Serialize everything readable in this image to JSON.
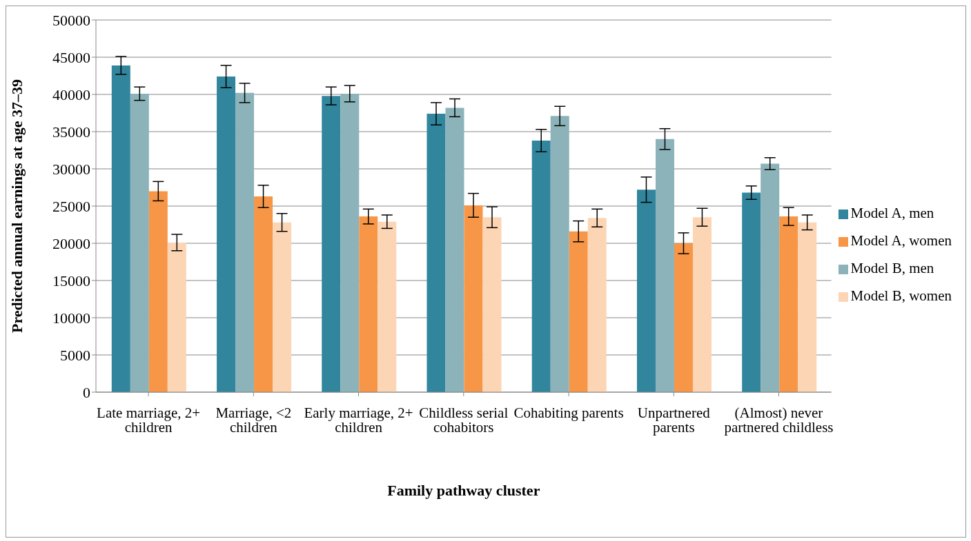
{
  "chart_data": {
    "type": "bar",
    "xlabel": "Family pathway cluster",
    "ylabel": "Predicted annual earnings at age 37–39",
    "categories": [
      "Late marriage, 2+ children",
      "Marriage, <2 children",
      "Early marriage, 2+ children",
      "Childless serial cohabitors",
      "Cohabiting parents",
      "Unpartnered parents",
      "(Almost) never partnered childless"
    ],
    "series": [
      {
        "name": "Model A, men",
        "color": "#31859c",
        "values": [
          43900,
          42400,
          39800,
          37400,
          33800,
          27200,
          26800
        ],
        "errors": [
          1200,
          1500,
          1200,
          1500,
          1500,
          1700,
          900
        ]
      },
      {
        "name": "Model B, men",
        "color": "#8cb3b9",
        "values": [
          40100,
          40200,
          40100,
          38200,
          37100,
          34000,
          30700
        ],
        "errors": [
          900,
          1300,
          1100,
          1200,
          1300,
          1400,
          800
        ]
      },
      {
        "name": "Model A, women",
        "color": "#f79646",
        "values": [
          27000,
          26300,
          23600,
          25100,
          21600,
          20000,
          23600
        ],
        "errors": [
          1300,
          1500,
          1000,
          1600,
          1400,
          1400,
          1200
        ]
      },
      {
        "name": "Model B, women",
        "color": "#fcd5b5",
        "values": [
          20100,
          22800,
          22900,
          23500,
          23400,
          23500,
          22800
        ],
        "errors": [
          1100,
          1200,
          900,
          1400,
          1200,
          1200,
          1000
        ]
      }
    ],
    "ylim": [
      0,
      50000
    ],
    "yticks": [
      0,
      5000,
      10000,
      15000,
      20000,
      25000,
      30000,
      35000,
      40000,
      45000,
      50000
    ],
    "grid": "y",
    "legend": "right"
  }
}
